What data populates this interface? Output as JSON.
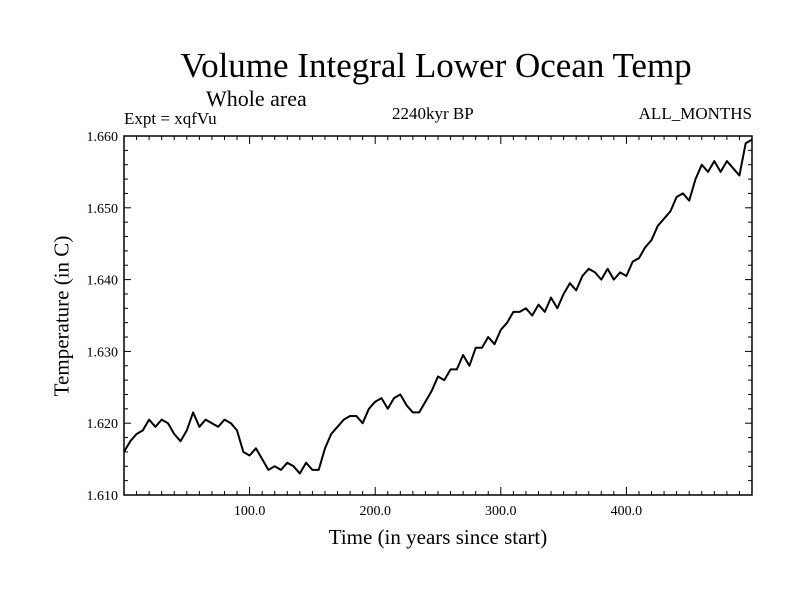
{
  "chart_data": {
    "type": "line",
    "title": "Volume Integral Lower Ocean Temp",
    "subtitle": "Whole area",
    "annotations": {
      "experiment": "Expt = xqfVu",
      "period": "2240kyr BP",
      "months": "ALL_MONTHS"
    },
    "xlabel": "Time (in years since start)",
    "ylabel": "Temperature (in C)",
    "xlim": [
      0,
      500
    ],
    "ylim": [
      1.61,
      1.66
    ],
    "x_ticks": [
      100,
      200,
      300,
      400
    ],
    "x_tick_labels": [
      "100.0",
      "200.0",
      "300.0",
      "400.0"
    ],
    "y_ticks": [
      1.61,
      1.62,
      1.63,
      1.64,
      1.65,
      1.66
    ],
    "y_tick_labels": [
      "1.610",
      "1.620",
      "1.630",
      "1.640",
      "1.650",
      "1.660"
    ],
    "series": [
      {
        "name": "Volume Integral Lower Ocean Temp",
        "x": [
          0,
          5,
          10,
          15,
          20,
          25,
          30,
          35,
          40,
          45,
          50,
          55,
          60,
          65,
          70,
          75,
          80,
          85,
          90,
          95,
          100,
          105,
          110,
          115,
          120,
          125,
          130,
          135,
          140,
          145,
          150,
          155,
          160,
          165,
          170,
          175,
          180,
          185,
          190,
          195,
          200,
          205,
          210,
          215,
          220,
          225,
          230,
          235,
          240,
          245,
          250,
          255,
          260,
          265,
          270,
          275,
          280,
          285,
          290,
          295,
          300,
          305,
          310,
          315,
          320,
          325,
          330,
          335,
          340,
          345,
          350,
          355,
          360,
          365,
          370,
          375,
          380,
          385,
          390,
          395,
          400,
          405,
          410,
          415,
          420,
          425,
          430,
          435,
          440,
          445,
          450,
          455,
          460,
          465,
          470,
          475,
          480,
          485,
          490,
          495,
          500
        ],
        "values": [
          1.616,
          1.6175,
          1.6185,
          1.619,
          1.6205,
          1.6195,
          1.6205,
          1.62,
          1.6185,
          1.6175,
          1.619,
          1.6215,
          1.6195,
          1.6205,
          1.62,
          1.6195,
          1.6205,
          1.62,
          1.619,
          1.616,
          1.6155,
          1.6165,
          1.615,
          1.6135,
          1.614,
          1.6135,
          1.6145,
          1.614,
          1.613,
          1.6145,
          1.6135,
          1.6135,
          1.6165,
          1.6185,
          1.6195,
          1.6205,
          1.621,
          1.621,
          1.62,
          1.622,
          1.623,
          1.6235,
          1.622,
          1.6235,
          1.624,
          1.6225,
          1.6215,
          1.6215,
          1.623,
          1.6245,
          1.6265,
          1.626,
          1.6275,
          1.6275,
          1.6295,
          1.628,
          1.6305,
          1.6305,
          1.632,
          1.631,
          1.633,
          1.634,
          1.6355,
          1.6355,
          1.636,
          1.635,
          1.6365,
          1.6355,
          1.6375,
          1.636,
          1.638,
          1.6395,
          1.6385,
          1.6405,
          1.6415,
          1.641,
          1.64,
          1.6415,
          1.64,
          1.641,
          1.6405,
          1.6425,
          1.643,
          1.6445,
          1.6455,
          1.6475,
          1.6485,
          1.6495,
          1.6515,
          1.652,
          1.651,
          1.654,
          1.656,
          1.655,
          1.6565,
          1.655,
          1.6565,
          1.6555,
          1.6545,
          1.659,
          1.6595
        ]
      }
    ]
  }
}
